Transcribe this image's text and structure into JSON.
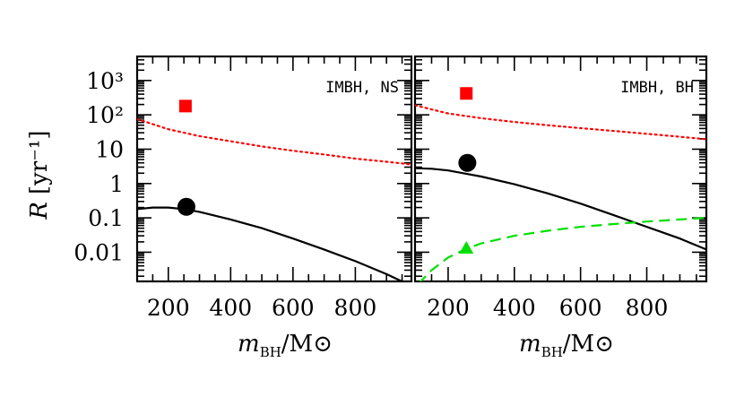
{
  "chart_data": {
    "type": "line",
    "ylabel": {
      "symbol": "R",
      "unit": "[yr⁻¹]"
    },
    "xlabel": {
      "symbol": "m",
      "sub": "BH",
      "unit": "/M⊙"
    },
    "xlim": [
      100,
      980
    ],
    "ylim_log10": [
      -2.85,
      3.7
    ],
    "xticks": [
      {
        "value": 200,
        "label": "200"
      },
      {
        "value": 400,
        "label": "400"
      },
      {
        "value": 600,
        "label": "600"
      },
      {
        "value": 800,
        "label": "800"
      }
    ],
    "yticks": [
      {
        "value": 1000,
        "label": "10³"
      },
      {
        "value": 100,
        "label": "10²"
      },
      {
        "value": 10,
        "label": "10"
      },
      {
        "value": 1,
        "label": "1"
      },
      {
        "value": 0.1,
        "label": "0.1"
      },
      {
        "value": 0.01,
        "label": "0.01"
      }
    ],
    "colors": {
      "red": "#ff0000",
      "black": "#000000",
      "green": "#00e000"
    },
    "panels": [
      {
        "label": "IMBH, NS",
        "series": [
          {
            "style": "dotted",
            "color": "#ff0000",
            "x": [
              100,
              200,
              300,
              400,
              500,
              600,
              700,
              800,
              900,
              980
            ],
            "y": [
              75,
              38,
              24,
              17,
              12,
              9,
              7,
              5.3,
              4.3,
              3.6
            ]
          },
          {
            "style": "solid",
            "color": "#000000",
            "x": [
              100,
              150,
              200,
              250,
              300,
              400,
              500,
              600,
              700,
              800,
              900,
              950
            ],
            "y": [
              0.18,
              0.2,
              0.2,
              0.18,
              0.15,
              0.09,
              0.05,
              0.025,
              0.012,
              0.0055,
              0.0023,
              0.0014
            ]
          }
        ],
        "markers": [
          {
            "shape": "square",
            "color": "#ff0000",
            "x": 255,
            "y": 180
          },
          {
            "shape": "circle",
            "color": "#000000",
            "x": 258,
            "y": 0.21
          }
        ]
      },
      {
        "label": "IMBH, BH",
        "series": [
          {
            "style": "dotted",
            "color": "#ff0000",
            "x": [
              100,
              200,
              300,
              400,
              500,
              600,
              700,
              800,
              900,
              980
            ],
            "y": [
              190,
              110,
              80,
              62,
              50,
              41,
              34,
              28,
              23,
              19.5
            ]
          },
          {
            "style": "solid",
            "color": "#000000",
            "x": [
              100,
              150,
              200,
              300,
              400,
              500,
              600,
              700,
              800,
              900,
              980
            ],
            "y": [
              2.8,
              2.7,
              2.4,
              1.6,
              0.95,
              0.52,
              0.26,
              0.12,
              0.055,
              0.025,
              0.012
            ]
          },
          {
            "style": "dashed",
            "color": "#00e000",
            "x": [
              110,
              150,
              200,
              250,
              300,
              400,
              500,
              600,
              700,
              800,
              900,
              980
            ],
            "y": [
              0.0012,
              0.003,
              0.007,
              0.012,
              0.018,
              0.03,
              0.042,
              0.055,
              0.066,
              0.078,
              0.09,
              0.1
            ]
          }
        ],
        "markers": [
          {
            "shape": "square",
            "color": "#ff0000",
            "x": 255,
            "y": 420
          },
          {
            "shape": "circle",
            "color": "#000000",
            "x": 258,
            "y": 4
          },
          {
            "shape": "triangle",
            "color": "#00e000",
            "x": 255,
            "y": 0.013
          }
        ]
      }
    ]
  }
}
